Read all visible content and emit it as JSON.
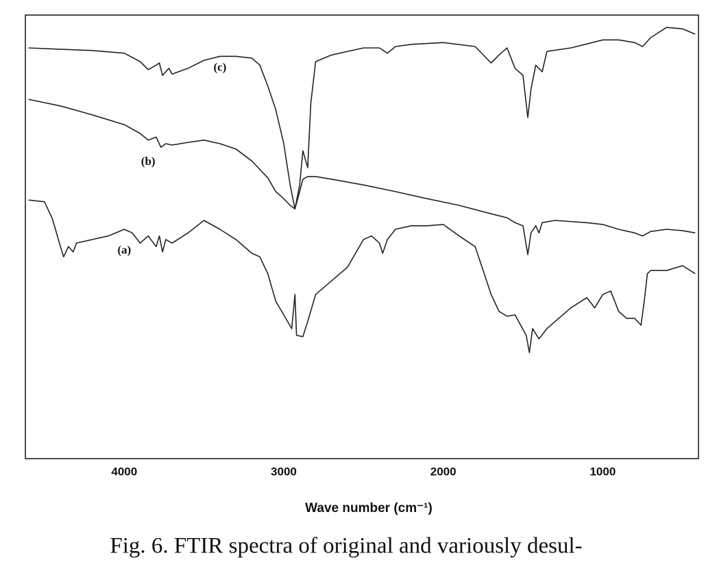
{
  "chart_data": {
    "type": "line",
    "xlabel": "Wave number (cm⁻¹)",
    "caption": "Fig. 6. FTIR spectra of original and variously desul-",
    "xlim": [
      4620,
      400
    ],
    "ylim": [
      0,
      100
    ],
    "xticks": [
      4000,
      3000,
      2000,
      1000
    ],
    "grid": false,
    "series": [
      {
        "name": "(c)",
        "color": "#222222",
        "x": [
          4600,
          4400,
          4200,
          4000,
          3900,
          3850,
          3800,
          3780,
          3760,
          3720,
          3700,
          3600,
          3500,
          3400,
          3300,
          3200,
          3150,
          3100,
          3050,
          3000,
          2960,
          2930,
          2900,
          2880,
          2850,
          2830,
          2800,
          2700,
          2600,
          2500,
          2400,
          2350,
          2300,
          2200,
          2000,
          1800,
          1700,
          1650,
          1600,
          1550,
          1500,
          1470,
          1450,
          1420,
          1380,
          1350,
          1200,
          1000,
          900,
          800,
          750,
          700,
          600,
          500,
          420
        ],
        "values": [
          92.6,
          92.3,
          92.0,
          91.4,
          89.5,
          87.7,
          88.7,
          89.2,
          86.4,
          88.0,
          86.7,
          88.0,
          89.8,
          90.7,
          90.7,
          90.3,
          88.7,
          84.0,
          78.7,
          71.0,
          61.7,
          56.3,
          61.7,
          69.4,
          65.6,
          80.2,
          89.5,
          91.0,
          91.8,
          92.6,
          92.6,
          91.4,
          92.9,
          93.4,
          93.8,
          92.9,
          89.2,
          91.0,
          92.6,
          88.0,
          86.4,
          76.9,
          83.3,
          88.7,
          87.2,
          91.8,
          92.6,
          94.4,
          94.4,
          93.8,
          92.9,
          94.9,
          97.2,
          96.9,
          95.7
        ]
      },
      {
        "name": "(b)",
        "color": "#222222",
        "x": [
          4600,
          4400,
          4200,
          4000,
          3900,
          3850,
          3800,
          3770,
          3740,
          3700,
          3600,
          3500,
          3400,
          3300,
          3200,
          3100,
          3050,
          3000,
          2960,
          2930,
          2900,
          2880,
          2850,
          2800,
          2700,
          2500,
          2300,
          2100,
          1900,
          1700,
          1600,
          1550,
          1500,
          1470,
          1450,
          1420,
          1400,
          1380,
          1300,
          1100,
          1000,
          900,
          800,
          750,
          700,
          600,
          500,
          420
        ],
        "values": [
          81.0,
          79.5,
          77.5,
          75.3,
          73.3,
          71.8,
          72.5,
          70.2,
          71.0,
          70.7,
          71.3,
          71.8,
          71.0,
          69.8,
          67.1,
          63.3,
          60.2,
          58.6,
          57.1,
          56.3,
          60.2,
          63.0,
          63.6,
          63.6,
          63.0,
          61.7,
          60.2,
          58.6,
          57.1,
          55.2,
          54.3,
          53.2,
          52.5,
          46.0,
          50.9,
          52.5,
          50.9,
          53.2,
          53.7,
          53.2,
          52.8,
          51.7,
          50.9,
          50.2,
          51.2,
          51.7,
          51.4,
          50.9
        ]
      },
      {
        "name": "(a)",
        "color": "#222222",
        "x": [
          4600,
          4500,
          4450,
          4400,
          4380,
          4350,
          4320,
          4300,
          4200,
          4100,
          4000,
          3950,
          3900,
          3850,
          3800,
          3780,
          3760,
          3740,
          3700,
          3600,
          3500,
          3400,
          3300,
          3200,
          3150,
          3100,
          3050,
          3000,
          2950,
          2930,
          2920,
          2880,
          2850,
          2800,
          2700,
          2600,
          2500,
          2450,
          2400,
          2380,
          2350,
          2300,
          2200,
          2100,
          2000,
          1900,
          1800,
          1750,
          1700,
          1650,
          1600,
          1550,
          1480,
          1460,
          1440,
          1400,
          1350,
          1300,
          1200,
          1100,
          1050,
          1000,
          950,
          900,
          850,
          800,
          760,
          740,
          720,
          700,
          600,
          500,
          420
        ],
        "values": [
          58.3,
          57.9,
          54.0,
          47.8,
          45.5,
          47.8,
          46.6,
          48.6,
          49.4,
          50.2,
          51.7,
          50.9,
          48.6,
          50.2,
          47.8,
          50.2,
          46.6,
          49.4,
          48.6,
          50.9,
          53.7,
          51.7,
          49.4,
          46.3,
          45.5,
          41.7,
          35.5,
          32.4,
          29.3,
          37.0,
          27.8,
          27.5,
          30.9,
          37.0,
          40.1,
          43.2,
          49.4,
          50.2,
          48.6,
          46.3,
          49.4,
          51.7,
          52.5,
          52.5,
          52.8,
          50.2,
          47.8,
          42.4,
          37.0,
          33.2,
          32.1,
          32.4,
          27.8,
          23.9,
          29.3,
          27.0,
          29.3,
          30.9,
          34.0,
          36.3,
          34.0,
          37.0,
          37.8,
          33.2,
          31.6,
          31.6,
          30.1,
          35.5,
          41.7,
          42.4,
          42.4,
          43.5,
          41.7
        ]
      }
    ],
    "annotations": [
      {
        "text": "(c)",
        "x": 3400,
        "y": 88.0
      },
      {
        "text": "(b)",
        "x": 3850,
        "y": 66.8
      },
      {
        "text": "(a)",
        "x": 4000,
        "y": 46.8
      }
    ]
  }
}
